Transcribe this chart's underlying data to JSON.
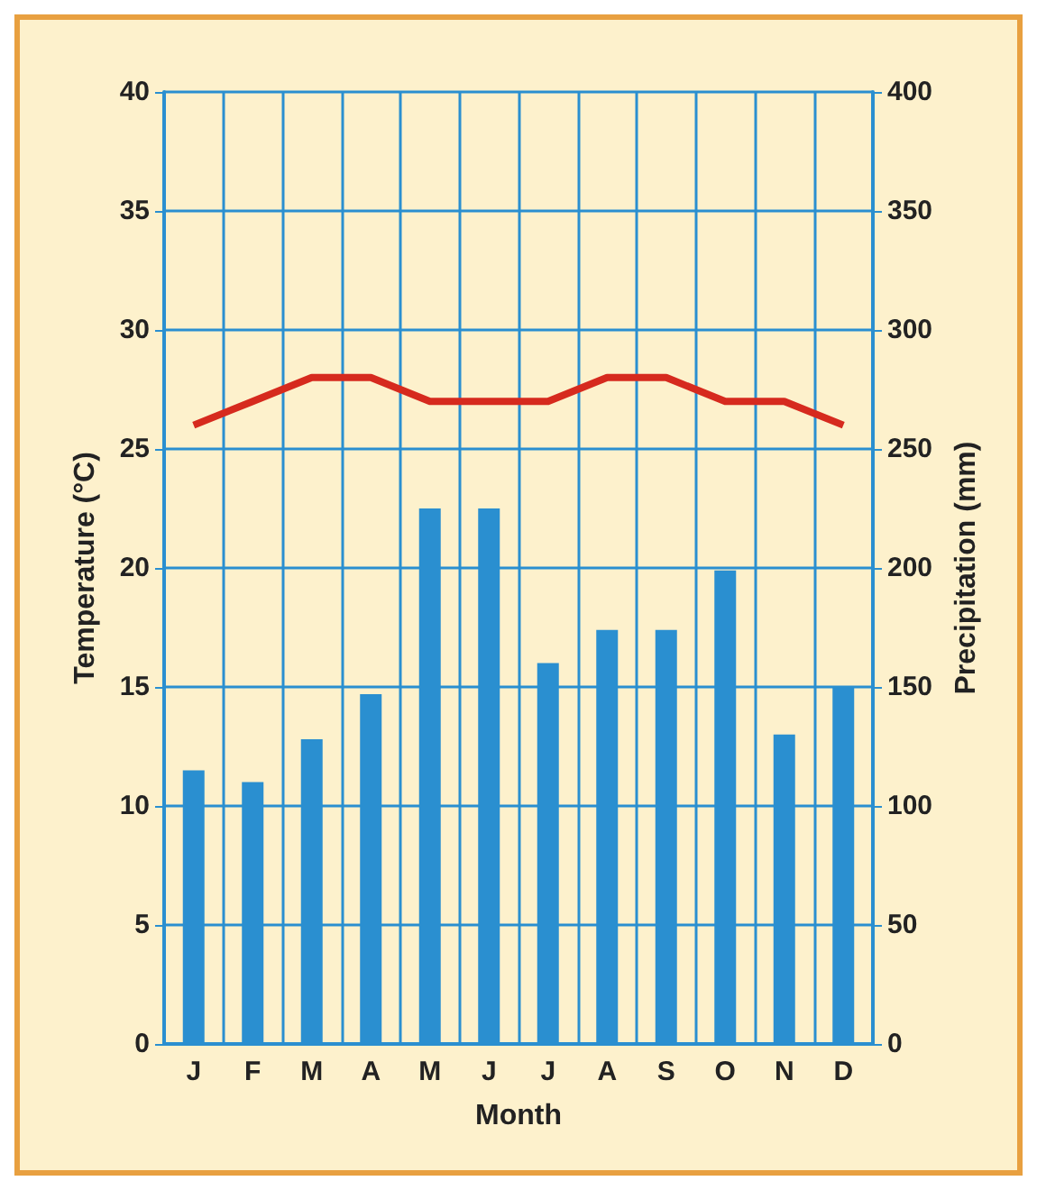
{
  "chart_data": {
    "type": "bar",
    "xlabel": "Month",
    "ylabel": "Temperature (°C)",
    "y2label": "Precipitation (mm)",
    "categories": [
      "J",
      "F",
      "M",
      "A",
      "M",
      "J",
      "J",
      "A",
      "S",
      "O",
      "N",
      "D"
    ],
    "series": [
      {
        "axis": "y2",
        "color": "#2a8fd0",
        "values": [
          115,
          110,
          128,
          147,
          225,
          225,
          160,
          174,
          174,
          199,
          130,
          150
        ]
      },
      {
        "type": "line",
        "axis": "y",
        "color": "#d62a1e",
        "values": [
          26,
          27,
          28,
          28,
          27,
          27,
          27,
          28,
          28,
          27,
          27,
          26
        ]
      }
    ],
    "ylim": [
      0,
      40
    ],
    "yticks": [
      0,
      5,
      10,
      15,
      20,
      25,
      30,
      35,
      40
    ],
    "y2lim": [
      0,
      400
    ],
    "y2ticks": [
      0,
      50,
      100,
      150,
      200,
      250,
      300,
      350,
      400
    ],
    "grid": true,
    "marker": "none",
    "line_style": "solid"
  }
}
